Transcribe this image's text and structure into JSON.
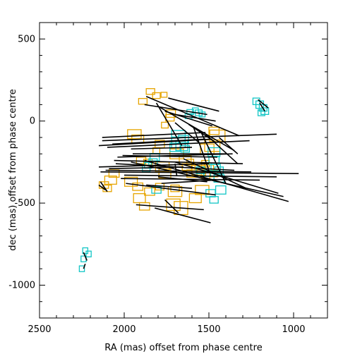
{
  "chart_data": {
    "type": "scatter",
    "title": "",
    "xlabel": "RA (mas) offset from phase centre",
    "ylabel": "dec (mas) offset from phase centre",
    "xlim": [
      2500,
      800
    ],
    "ylim": [
      -1200,
      600
    ],
    "x_ticks": [
      2500,
      2000,
      1500,
      1000
    ],
    "y_ticks": [
      500,
      0,
      -500,
      -1000
    ],
    "grid": false,
    "colors": {
      "gold": "#e6a400",
      "cyan": "#12c6c6",
      "line": "#000000"
    },
    "series": [
      {
        "color_key": "gold",
        "boxes": [
          {
            "x": 1845,
            "y": 180,
            "w": 50,
            "h": 35
          },
          {
            "x": 1810,
            "y": 155,
            "w": 45,
            "h": 35
          },
          {
            "x": 1890,
            "y": 120,
            "w": 50,
            "h": 35
          },
          {
            "x": 1765,
            "y": 160,
            "w": 35,
            "h": 30
          },
          {
            "x": 1725,
            "y": 45,
            "w": 55,
            "h": 45
          },
          {
            "x": 1730,
            "y": 20,
            "w": 50,
            "h": 40
          },
          {
            "x": 1760,
            "y": -25,
            "w": 40,
            "h": 35
          },
          {
            "x": 1940,
            "y": -80,
            "w": 80,
            "h": 55
          },
          {
            "x": 1920,
            "y": -110,
            "w": 70,
            "h": 50
          },
          {
            "x": 1790,
            "y": -140,
            "w": 55,
            "h": 45
          },
          {
            "x": 1810,
            "y": -180,
            "w": 40,
            "h": 35
          },
          {
            "x": 1900,
            "y": -240,
            "w": 55,
            "h": 40
          },
          {
            "x": 1860,
            "y": -250,
            "w": 50,
            "h": 35
          },
          {
            "x": 1775,
            "y": -280,
            "w": 80,
            "h": 60
          },
          {
            "x": 1760,
            "y": -320,
            "w": 70,
            "h": 55
          },
          {
            "x": 2060,
            "y": -320,
            "w": 60,
            "h": 45
          },
          {
            "x": 2080,
            "y": -360,
            "w": 70,
            "h": 50
          },
          {
            "x": 2120,
            "y": -390,
            "w": 55,
            "h": 40
          },
          {
            "x": 2100,
            "y": -410,
            "w": 50,
            "h": 40
          },
          {
            "x": 1960,
            "y": -370,
            "w": 75,
            "h": 55
          },
          {
            "x": 1920,
            "y": -400,
            "w": 60,
            "h": 45
          },
          {
            "x": 1850,
            "y": -430,
            "w": 60,
            "h": 45
          },
          {
            "x": 1790,
            "y": -400,
            "w": 50,
            "h": 40
          },
          {
            "x": 1700,
            "y": -410,
            "w": 50,
            "h": 40
          },
          {
            "x": 1700,
            "y": -430,
            "w": 80,
            "h": 60
          },
          {
            "x": 1910,
            "y": -470,
            "w": 70,
            "h": 55
          },
          {
            "x": 1880,
            "y": -520,
            "w": 60,
            "h": 45
          },
          {
            "x": 1710,
            "y": -510,
            "w": 80,
            "h": 70
          },
          {
            "x": 1665,
            "y": -530,
            "w": 80,
            "h": 80
          },
          {
            "x": 1580,
            "y": -470,
            "w": 70,
            "h": 55
          },
          {
            "x": 1540,
            "y": -420,
            "w": 80,
            "h": 55
          },
          {
            "x": 1560,
            "y": -300,
            "w": 80,
            "h": 60
          },
          {
            "x": 1555,
            "y": -275,
            "w": 55,
            "h": 45
          },
          {
            "x": 1520,
            "y": -260,
            "w": 45,
            "h": 40
          },
          {
            "x": 1500,
            "y": -290,
            "w": 55,
            "h": 45
          },
          {
            "x": 1470,
            "y": -320,
            "w": 45,
            "h": 40
          },
          {
            "x": 1520,
            "y": -330,
            "w": 50,
            "h": 40
          },
          {
            "x": 1600,
            "y": -320,
            "w": 60,
            "h": 45
          },
          {
            "x": 1480,
            "y": -150,
            "w": 90,
            "h": 70
          },
          {
            "x": 1450,
            "y": -90,
            "w": 90,
            "h": 70
          },
          {
            "x": 1470,
            "y": -60,
            "w": 60,
            "h": 45
          },
          {
            "x": 1510,
            "y": -170,
            "w": 80,
            "h": 60
          },
          {
            "x": 1690,
            "y": -200,
            "w": 80,
            "h": 60
          },
          {
            "x": 1640,
            "y": -240,
            "w": 70,
            "h": 55
          },
          {
            "x": 1610,
            "y": -250,
            "w": 40,
            "h": 35
          },
          {
            "x": 1630,
            "y": -280,
            "w": 55,
            "h": 40
          }
        ]
      },
      {
        "color_key": "cyan",
        "boxes": [
          {
            "x": 1580,
            "y": 65,
            "w": 35,
            "h": 30
          },
          {
            "x": 1610,
            "y": 55,
            "w": 40,
            "h": 30
          },
          {
            "x": 1620,
            "y": 30,
            "w": 40,
            "h": 30
          },
          {
            "x": 1560,
            "y": 50,
            "w": 40,
            "h": 35
          },
          {
            "x": 1540,
            "y": 40,
            "w": 35,
            "h": 30
          },
          {
            "x": 1680,
            "y": -90,
            "w": 80,
            "h": 65
          },
          {
            "x": 1680,
            "y": -130,
            "w": 80,
            "h": 65
          },
          {
            "x": 1660,
            "y": -150,
            "w": 70,
            "h": 60
          },
          {
            "x": 1650,
            "y": -110,
            "w": 60,
            "h": 45
          },
          {
            "x": 1700,
            "y": -160,
            "w": 60,
            "h": 50
          },
          {
            "x": 1640,
            "y": -170,
            "w": 50,
            "h": 40
          },
          {
            "x": 1820,
            "y": -220,
            "w": 55,
            "h": 45
          },
          {
            "x": 1830,
            "y": -250,
            "w": 50,
            "h": 40
          },
          {
            "x": 1860,
            "y": -270,
            "w": 40,
            "h": 35
          },
          {
            "x": 1870,
            "y": -290,
            "w": 45,
            "h": 40
          },
          {
            "x": 1810,
            "y": -420,
            "w": 55,
            "h": 40
          },
          {
            "x": 1470,
            "y": -190,
            "w": 70,
            "h": 55
          },
          {
            "x": 1470,
            "y": -240,
            "w": 60,
            "h": 50
          },
          {
            "x": 1460,
            "y": -280,
            "w": 55,
            "h": 45
          },
          {
            "x": 1440,
            "y": -300,
            "w": 50,
            "h": 40
          },
          {
            "x": 1440,
            "y": -350,
            "w": 60,
            "h": 45
          },
          {
            "x": 1430,
            "y": -420,
            "w": 60,
            "h": 50
          },
          {
            "x": 1470,
            "y": -480,
            "w": 50,
            "h": 40
          },
          {
            "x": 1490,
            "y": -440,
            "w": 55,
            "h": 45
          },
          {
            "x": 1550,
            "y": -300,
            "w": 50,
            "h": 40
          },
          {
            "x": 1510,
            "y": -320,
            "w": 40,
            "h": 35
          },
          {
            "x": 1220,
            "y": 120,
            "w": 40,
            "h": 40
          },
          {
            "x": 1200,
            "y": 100,
            "w": 45,
            "h": 45
          },
          {
            "x": 1180,
            "y": 80,
            "w": 45,
            "h": 40
          },
          {
            "x": 1170,
            "y": 60,
            "w": 45,
            "h": 40
          },
          {
            "x": 1190,
            "y": 50,
            "w": 40,
            "h": 35
          },
          {
            "x": 2230,
            "y": -790,
            "w": 30,
            "h": 35
          },
          {
            "x": 2210,
            "y": -810,
            "w": 30,
            "h": 35
          },
          {
            "x": 2240,
            "y": -840,
            "w": 30,
            "h": 35
          },
          {
            "x": 2250,
            "y": -900,
            "w": 30,
            "h": 35
          }
        ]
      }
    ],
    "vectors": [
      {
        "x1": 1870,
        "y1": 150,
        "x2": 1320,
        "y2": -90
      },
      {
        "x1": 1880,
        "y1": 100,
        "x2": 1510,
        "y2": 40
      },
      {
        "x1": 1740,
        "y1": 140,
        "x2": 1440,
        "y2": 60
      },
      {
        "x1": 1810,
        "y1": 110,
        "x2": 1660,
        "y2": -150
      },
      {
        "x1": 1800,
        "y1": 90,
        "x2": 1350,
        "y2": -180
      },
      {
        "x1": 1760,
        "y1": 60,
        "x2": 1480,
        "y2": -30
      },
      {
        "x1": 1700,
        "y1": 40,
        "x2": 1460,
        "y2": 0
      },
      {
        "x1": 2130,
        "y1": -100,
        "x2": 1520,
        "y2": -70
      },
      {
        "x1": 2130,
        "y1": -120,
        "x2": 1100,
        "y2": -80
      },
      {
        "x1": 2070,
        "y1": -140,
        "x2": 1520,
        "y2": -110
      },
      {
        "x1": 2150,
        "y1": -150,
        "x2": 1480,
        "y2": -110
      },
      {
        "x1": 2100,
        "y1": -160,
        "x2": 1260,
        "y2": -120
      },
      {
        "x1": 1960,
        "y1": -170,
        "x2": 1600,
        "y2": -160
      },
      {
        "x1": 1950,
        "y1": -200,
        "x2": 1400,
        "y2": -200
      },
      {
        "x1": 2010,
        "y1": -210,
        "x2": 1450,
        "y2": -220
      },
      {
        "x1": 2040,
        "y1": -220,
        "x2": 1360,
        "y2": -200
      },
      {
        "x1": 2060,
        "y1": -240,
        "x2": 1300,
        "y2": -260
      },
      {
        "x1": 2050,
        "y1": -260,
        "x2": 1350,
        "y2": -300
      },
      {
        "x1": 2150,
        "y1": -280,
        "x2": 1500,
        "y2": -260
      },
      {
        "x1": 2090,
        "y1": -290,
        "x2": 1650,
        "y2": -280
      },
      {
        "x1": 2110,
        "y1": -300,
        "x2": 1250,
        "y2": -310
      },
      {
        "x1": 2140,
        "y1": -310,
        "x2": 970,
        "y2": -320
      },
      {
        "x1": 2000,
        "y1": -330,
        "x2": 1100,
        "y2": -340
      },
      {
        "x1": 2020,
        "y1": -350,
        "x2": 1200,
        "y2": -360
      },
      {
        "x1": 1800,
        "y1": -340,
        "x2": 1510,
        "y2": -370
      },
      {
        "x1": 1990,
        "y1": -380,
        "x2": 1460,
        "y2": -450
      },
      {
        "x1": 1870,
        "y1": -390,
        "x2": 1600,
        "y2": -410
      },
      {
        "x1": 1780,
        "y1": -380,
        "x2": 1470,
        "y2": -360
      },
      {
        "x1": 1960,
        "y1": -250,
        "x2": 1060,
        "y2": -460
      },
      {
        "x1": 1880,
        "y1": -240,
        "x2": 1030,
        "y2": -490
      },
      {
        "x1": 1700,
        "y1": -250,
        "x2": 1090,
        "y2": -440
      },
      {
        "x1": 1650,
        "y1": -230,
        "x2": 1280,
        "y2": -410
      },
      {
        "x1": 1930,
        "y1": -510,
        "x2": 1530,
        "y2": -540
      },
      {
        "x1": 1820,
        "y1": -530,
        "x2": 1490,
        "y2": -620
      },
      {
        "x1": 1760,
        "y1": -480,
        "x2": 1680,
        "y2": -560
      },
      {
        "x1": 1620,
        "y1": -20,
        "x2": 1460,
        "y2": -130
      },
      {
        "x1": 1590,
        "y1": -40,
        "x2": 1500,
        "y2": -300
      },
      {
        "x1": 1550,
        "y1": -60,
        "x2": 1400,
        "y2": -380
      },
      {
        "x1": 1520,
        "y1": -80,
        "x2": 1330,
        "y2": -260
      },
      {
        "x1": 1440,
        "y1": -100,
        "x2": 1330,
        "y2": -200
      },
      {
        "x1": 1700,
        "y1": -10,
        "x2": 1560,
        "y2": -130
      },
      {
        "x1": 1700,
        "y1": -260,
        "x2": 1690,
        "y2": -330
      },
      {
        "x1": 2140,
        "y1": -370,
        "x2": 2100,
        "y2": -430
      },
      {
        "x1": 2150,
        "y1": -390,
        "x2": 2110,
        "y2": -420
      },
      {
        "x1": 1210,
        "y1": 130,
        "x2": 1150,
        "y2": 80
      },
      {
        "x1": 1200,
        "y1": 110,
        "x2": 1170,
        "y2": 60
      },
      {
        "x1": 2240,
        "y1": -800,
        "x2": 2220,
        "y2": -850
      },
      {
        "x1": 2230,
        "y1": -870,
        "x2": 2240,
        "y2": -900
      }
    ]
  }
}
